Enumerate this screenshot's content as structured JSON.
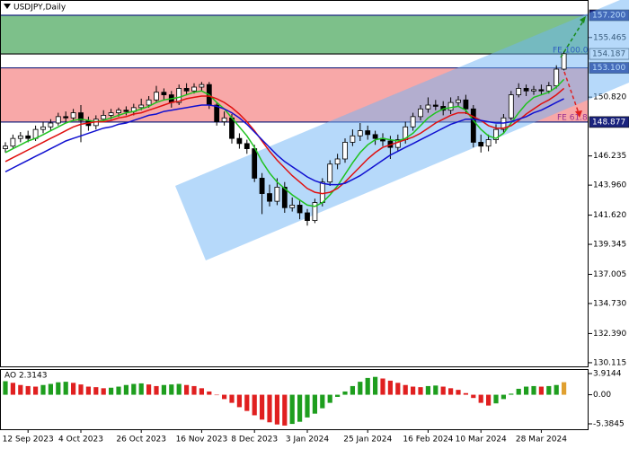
{
  "chart_data": {
    "type": "candlestick",
    "title": "USDJPY,Daily",
    "categories": [
      null,
      null,
      null,
      "12 Sep 2023",
      null,
      null,
      null,
      null,
      null,
      null,
      "4 Oct 2023",
      null,
      null,
      null,
      null,
      null,
      null,
      null,
      "26 Oct 2023",
      null,
      null,
      null,
      null,
      null,
      null,
      null,
      "16 Nov 2023",
      null,
      null,
      null,
      null,
      null,
      null,
      "8 Dec 2023",
      null,
      null,
      null,
      null,
      null,
      null,
      "3 Jan 2024",
      null,
      null,
      null,
      null,
      null,
      null,
      null,
      "25 Jan 2024",
      null,
      null,
      null,
      null,
      null,
      null,
      null,
      "16 Feb 2024",
      null,
      null,
      null,
      null,
      null,
      null,
      "10 Mar 2024",
      null,
      null,
      null,
      null,
      null,
      null,
      null,
      "28 Mar 2024",
      null,
      null,
      null
    ],
    "open": [
      146.8,
      147.0,
      147.6,
      147.8,
      147.6,
      148.3,
      148.5,
      148.8,
      149.3,
      149.2,
      149.6,
      149.0,
      148.6,
      149.1,
      149.4,
      149.6,
      149.8,
      149.7,
      150.0,
      150.2,
      150.6,
      151.2,
      151.0,
      150.4,
      151.5,
      151.3,
      151.6,
      151.8,
      150.2,
      148.9,
      149.2,
      147.6,
      147.2,
      146.8,
      144.5,
      143.3,
      142.7,
      143.8,
      142.2,
      142.4,
      141.8,
      141.2,
      142.6,
      144.2,
      145.6,
      146.0,
      147.3,
      147.8,
      148.2,
      147.9,
      147.6,
      147.4,
      146.9,
      147.5,
      148.5,
      149.3,
      149.9,
      150.2,
      150.1,
      149.8,
      150.4,
      150.6,
      149.9,
      147.3,
      147.0,
      147.5,
      148.3,
      149.2,
      151.0,
      151.5,
      151.3,
      151.4,
      151.3,
      151.7,
      153.0
    ],
    "high": [
      147.3,
      147.9,
      148.1,
      148.2,
      148.6,
      148.9,
      149.1,
      149.6,
      149.7,
      149.9,
      150.2,
      149.3,
      149.4,
      149.8,
      149.9,
      150.0,
      150.1,
      150.3,
      150.7,
      150.9,
      151.7,
      151.5,
      151.3,
      151.8,
      151.9,
      151.9,
      152.0,
      152.0,
      150.4,
      149.7,
      149.5,
      148.0,
      147.5,
      147.1,
      144.9,
      144.0,
      144.5,
      144.2,
      143.0,
      142.8,
      142.1,
      142.9,
      144.5,
      145.9,
      146.4,
      147.6,
      148.3,
      148.8,
      148.6,
      148.2,
      148.0,
      147.8,
      147.9,
      148.9,
      149.6,
      150.2,
      150.8,
      150.6,
      150.5,
      150.8,
      150.9,
      151.0,
      150.2,
      147.9,
      147.9,
      148.7,
      149.5,
      151.3,
      151.9,
      151.8,
      151.7,
      151.8,
      152.0,
      153.3,
      154.4
    ],
    "low": [
      146.5,
      146.8,
      147.3,
      147.3,
      147.4,
      148.0,
      148.2,
      148.6,
      148.9,
      149.0,
      147.3,
      148.2,
      148.3,
      148.9,
      149.1,
      149.3,
      149.4,
      149.4,
      149.8,
      150.0,
      150.4,
      150.6,
      150.0,
      150.2,
      151.0,
      151.1,
      151.3,
      149.9,
      148.6,
      148.6,
      147.2,
      146.8,
      146.4,
      144.2,
      141.7,
      142.3,
      142.4,
      141.8,
      141.9,
      141.3,
      140.8,
      141.0,
      142.3,
      143.9,
      145.2,
      145.7,
      147.0,
      147.4,
      147.5,
      147.1,
      147.0,
      146.0,
      146.6,
      147.2,
      148.2,
      149.0,
      149.6,
      149.8,
      149.4,
      149.5,
      150.1,
      149.5,
      146.9,
      146.5,
      146.6,
      147.2,
      148.0,
      149.0,
      150.8,
      150.9,
      151.0,
      151.0,
      151.1,
      151.5,
      152.9
    ],
    "close": [
      147.0,
      147.6,
      147.8,
      147.6,
      148.3,
      148.5,
      148.8,
      149.3,
      149.2,
      149.6,
      149.0,
      148.6,
      149.1,
      149.4,
      149.6,
      149.8,
      149.7,
      150.0,
      150.2,
      150.6,
      151.2,
      151.0,
      150.4,
      151.5,
      151.3,
      151.6,
      151.8,
      150.2,
      148.9,
      149.2,
      147.6,
      147.2,
      146.8,
      144.5,
      143.3,
      142.7,
      143.8,
      142.2,
      142.4,
      141.8,
      141.2,
      142.6,
      144.2,
      145.6,
      146.0,
      147.3,
      147.8,
      148.2,
      147.9,
      147.6,
      147.4,
      146.9,
      147.5,
      148.5,
      149.3,
      149.9,
      150.2,
      150.1,
      149.8,
      150.4,
      150.6,
      149.9,
      147.3,
      147.0,
      147.5,
      148.3,
      149.2,
      151.0,
      151.5,
      151.3,
      151.4,
      151.3,
      151.7,
      153.0,
      154.2
    ],
    "up_color": "#ffffff",
    "down_color": "#000000",
    "moving_averages": [
      {
        "color": "#1fc21f",
        "values": [
          146.5,
          146.8,
          147.1,
          147.4,
          147.6,
          147.9,
          148.2,
          148.5,
          148.8,
          149.0,
          149.1,
          149.0,
          148.9,
          149.0,
          149.2,
          149.4,
          149.6,
          149.7,
          149.9,
          150.1,
          150.4,
          150.6,
          150.7,
          150.8,
          151.0,
          151.2,
          151.3,
          151.0,
          150.4,
          149.9,
          149.2,
          148.5,
          147.8,
          146.9,
          145.8,
          144.9,
          144.2,
          143.7,
          143.2,
          142.8,
          142.4,
          142.3,
          142.6,
          143.2,
          143.9,
          144.8,
          145.7,
          146.5,
          147.1,
          147.5,
          147.6,
          147.5,
          147.4,
          147.6,
          148.0,
          148.6,
          149.2,
          149.6,
          149.9,
          150.0,
          150.1,
          149.8,
          149.0,
          148.3,
          147.8,
          147.6,
          148.0,
          148.8,
          149.6,
          150.3,
          150.8,
          151.0,
          151.2,
          151.6,
          152.2
        ]
      },
      {
        "color": "#e01010",
        "values": [
          145.8,
          146.1,
          146.4,
          146.7,
          147.0,
          147.3,
          147.6,
          147.9,
          148.2,
          148.5,
          148.7,
          148.8,
          148.9,
          148.9,
          149.0,
          149.2,
          149.3,
          149.5,
          149.6,
          149.8,
          150.0,
          150.2,
          150.4,
          150.5,
          150.7,
          150.8,
          150.9,
          150.9,
          150.7,
          150.4,
          150.0,
          149.5,
          148.9,
          148.2,
          147.4,
          146.6,
          145.9,
          145.3,
          144.7,
          144.2,
          143.7,
          143.4,
          143.3,
          143.4,
          143.7,
          144.2,
          144.8,
          145.4,
          146.0,
          146.5,
          146.9,
          147.1,
          147.3,
          147.5,
          147.7,
          148.0,
          148.4,
          148.8,
          149.1,
          149.4,
          149.6,
          149.6,
          149.3,
          149.0,
          148.6,
          148.4,
          148.4,
          148.6,
          149.0,
          149.5,
          149.9,
          150.3,
          150.6,
          151.0,
          151.5
        ]
      },
      {
        "color": "#1010d0",
        "values": [
          145.0,
          145.3,
          145.6,
          145.9,
          146.2,
          146.5,
          146.8,
          147.1,
          147.4,
          147.6,
          147.8,
          148.0,
          148.2,
          148.4,
          148.5,
          148.7,
          148.8,
          149.0,
          149.2,
          149.4,
          149.5,
          149.7,
          149.8,
          149.9,
          150.0,
          150.1,
          150.2,
          150.2,
          150.1,
          149.9,
          149.6,
          149.2,
          148.7,
          148.1,
          147.5,
          146.9,
          146.3,
          145.8,
          145.4,
          145.0,
          144.6,
          144.3,
          144.1,
          144.0,
          144.0,
          144.1,
          144.4,
          144.7,
          145.1,
          145.5,
          145.9,
          146.3,
          146.6,
          146.9,
          147.2,
          147.5,
          147.8,
          148.1,
          148.4,
          148.7,
          148.9,
          149.1,
          149.1,
          149.0,
          148.9,
          148.8,
          148.8,
          148.9,
          149.1,
          149.3,
          149.6,
          149.8,
          150.1,
          150.4,
          150.7
        ]
      }
    ],
    "ylim": [
      129.83,
      158.39
    ],
    "yticks": [
      155.465,
      {
        "value": 150.82,
        "label": "150.820"
      },
      146.235,
      {
        "value": 143.96,
        "label": "143.960"
      },
      {
        "value": 141.62,
        "label": "141.620"
      },
      139.345,
      137.005,
      {
        "value": 134.73,
        "label": "134.730"
      },
      {
        "value": 132.39,
        "label": "132.390"
      },
      130.115
    ],
    "zones": [
      {
        "from": 154.187,
        "to": 157.2,
        "color": "#7dc08a"
      },
      {
        "from": 148.877,
        "to": 153.1,
        "color": "#f8a8a8"
      }
    ],
    "levels": [
      {
        "value": 157.2,
        "label": "157.200",
        "color": "#1a237e",
        "text_color": "#ffffff"
      },
      {
        "value": 154.187,
        "label": "154.187",
        "color": "#ffffff",
        "text_color": "#000000"
      },
      {
        "value": 153.1,
        "label": "153.100",
        "color": "#1a237e",
        "text_color": "#ffffff"
      },
      {
        "value": 148.877,
        "label": "148.877",
        "color": "#1a237e",
        "text_color": "#ffffff"
      }
    ],
    "annotations": [
      "FE 100.0",
      "FE 61.8"
    ],
    "indicator": {
      "type": "histogram",
      "label": "AO 2.3143",
      "values": [
        2.5,
        2.2,
        1.8,
        1.6,
        1.5,
        1.8,
        2.0,
        2.3,
        2.4,
        2.2,
        1.9,
        1.5,
        1.4,
        1.2,
        1.3,
        1.5,
        1.8,
        2.0,
        2.1,
        1.9,
        1.6,
        1.8,
        1.9,
        2.0,
        1.8,
        1.6,
        1.2,
        0.6,
        0.0,
        -0.8,
        -1.5,
        -2.3,
        -3.0,
        -3.8,
        -4.6,
        -5.1,
        -5.5,
        -5.7,
        -5.4,
        -5.0,
        -4.2,
        -3.5,
        -2.5,
        -1.5,
        -0.4,
        0.6,
        1.6,
        2.4,
        3.1,
        3.3,
        3.0,
        2.6,
        2.2,
        1.8,
        1.5,
        1.4,
        1.6,
        1.7,
        1.5,
        1.2,
        0.9,
        0.3,
        -0.6,
        -1.5,
        -2.0,
        -1.6,
        -0.8,
        0.2,
        1.1,
        1.5,
        1.6,
        1.5,
        1.6,
        1.8,
        2.3143
      ],
      "up_color": "#1e9e1e",
      "down_color": "#e02020",
      "highlight_color": "#e0a030",
      "ylim": [
        -6.381,
        4.578
      ],
      "yticks": [
        3.9144,
        {
          "value": 0,
          "label": "0.00"
        },
        -5.3845
      ]
    }
  }
}
